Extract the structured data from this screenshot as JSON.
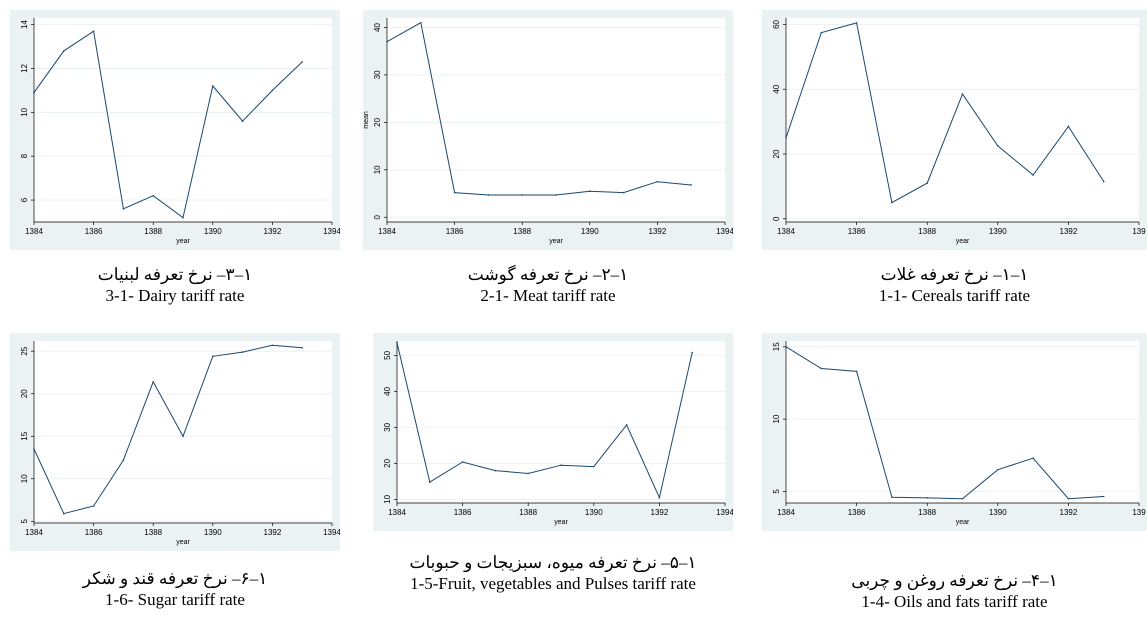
{
  "chart_data": [
    {
      "id": "c1",
      "type": "line",
      "caption_fa": "۱–۳– نرخ تعرفه لبنیات",
      "caption_en": "3-1- Dairy tariff rate",
      "xlabel": "year",
      "ylabel": "",
      "x": [
        1384,
        1385,
        1386,
        1387,
        1388,
        1389,
        1390,
        1391,
        1392,
        1393
      ],
      "values": [
        10.9,
        12.8,
        13.7,
        5.6,
        6.2,
        5.2,
        11.2,
        9.6,
        11.0,
        12.3
      ],
      "xlim": [
        1384,
        1394
      ],
      "ylim": [
        5,
        14.3
      ],
      "xticks": [
        "1384",
        "1386",
        "1388",
        "1390",
        "1392",
        "1394"
      ],
      "yticks": [
        "6",
        "8",
        "10",
        "12",
        "14"
      ],
      "grid": true
    },
    {
      "id": "c2",
      "type": "line",
      "caption_fa": "۱–۲– نرخ تعرفه گوشت",
      "caption_en": "2-1- Meat tariff rate",
      "xlabel": "year",
      "ylabel": "mean",
      "x": [
        1384,
        1385,
        1386,
        1387,
        1388,
        1389,
        1390,
        1391,
        1392,
        1393
      ],
      "values": [
        37.0,
        41.0,
        5.2,
        4.7,
        4.7,
        4.7,
        5.5,
        5.2,
        7.5,
        6.8
      ],
      "xlim": [
        1384,
        1394
      ],
      "ylim": [
        -1,
        42
      ],
      "xticks": [
        "1384",
        "1386",
        "1388",
        "1390",
        "1392",
        "1394"
      ],
      "yticks": [
        "0",
        "10",
        "20",
        "30",
        "40"
      ],
      "grid": true
    },
    {
      "id": "c3",
      "type": "line",
      "caption_fa": "۱–۱– نرخ تعرفه غلات",
      "caption_en": "1-1- Cereals tariff rate",
      "xlabel": "year",
      "ylabel": "",
      "x": [
        1384,
        1385,
        1386,
        1387,
        1388,
        1389,
        1390,
        1391,
        1392,
        1393
      ],
      "values": [
        25,
        57.5,
        60.5,
        5,
        11,
        38.5,
        22.5,
        13.5,
        28.5,
        11.5
      ],
      "xlim": [
        1384,
        1394
      ],
      "ylim": [
        -1,
        62
      ],
      "xticks": [
        "1384",
        "1386",
        "1388",
        "1390",
        "1392",
        "139"
      ],
      "yticks": [
        "0",
        "20",
        "40",
        "60"
      ],
      "grid": true
    },
    {
      "id": "c4",
      "type": "line",
      "caption_fa": "۱–۶– نرخ تعرفه قند و شکر",
      "caption_en": "1-6- Sugar tariff rate",
      "xlabel": "year",
      "ylabel": "",
      "x": [
        1384,
        1385,
        1386,
        1387,
        1388,
        1389,
        1390,
        1391,
        1392,
        1393
      ],
      "values": [
        13.5,
        5.9,
        6.8,
        12.2,
        21.4,
        15.0,
        24.4,
        24.9,
        25.7,
        25.4
      ],
      "xlim": [
        1384,
        1394
      ],
      "ylim": [
        4.8,
        26.2
      ],
      "xticks": [
        "1384",
        "1386",
        "1388",
        "1390",
        "1392",
        "1394"
      ],
      "yticks": [
        "5",
        "10",
        "15",
        "20",
        "25"
      ],
      "grid": true
    },
    {
      "id": "c5",
      "type": "line",
      "caption_fa": "۱–۵– نرخ تعرفه میوه، سبزیجات و حبوبات",
      "caption_en": "1-5-Fruit, vegetables and Pulses tariff rate",
      "xlabel": "year",
      "ylabel": "",
      "x": [
        1384,
        1385,
        1386,
        1387,
        1388,
        1389,
        1390,
        1391,
        1392,
        1393
      ],
      "values": [
        53.5,
        14.8,
        20.4,
        18.0,
        17.2,
        19.5,
        19.1,
        30.7,
        10.5,
        50.8
      ],
      "xlim": [
        1384,
        1394
      ],
      "ylim": [
        9,
        54
      ],
      "xticks": [
        "1384",
        "1386",
        "1388",
        "1390",
        "1392",
        "1394"
      ],
      "yticks": [
        "10",
        "20",
        "30",
        "40",
        "50"
      ],
      "grid": true
    },
    {
      "id": "c6",
      "type": "line",
      "caption_fa": "۱–۴– نرخ تعرفه روغن و چربی",
      "caption_en": "1-4- Oils and fats tariff rate",
      "xlabel": "year",
      "ylabel": "",
      "x": [
        1384,
        1385,
        1386,
        1387,
        1388,
        1389,
        1390,
        1391,
        1392,
        1393
      ],
      "values": [
        15.0,
        13.5,
        13.3,
        4.6,
        4.55,
        4.5,
        6.5,
        7.3,
        4.5,
        4.65
      ],
      "xlim": [
        1384,
        1394
      ],
      "ylim": [
        4.2,
        15.4
      ],
      "xticks": [
        "1384",
        "1386",
        "1388",
        "1390",
        "1392",
        "139"
      ],
      "yticks": [
        "5",
        "10",
        "15"
      ],
      "grid": true
    }
  ],
  "colors": {
    "line": "#1a476f",
    "plot_bg": "#eaf2f3",
    "grid": "#ffffff"
  }
}
